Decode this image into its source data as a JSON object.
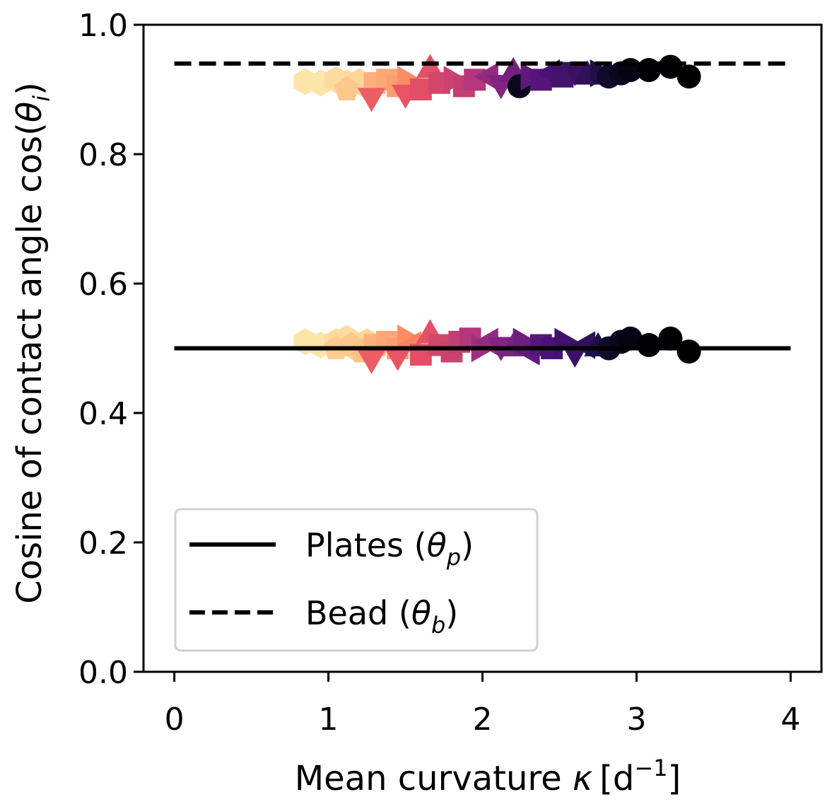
{
  "chart_data": {
    "type": "scatter",
    "title": "",
    "xlabel": {
      "text": "Mean curvature ",
      "symbol": "κ",
      "unit": "[d",
      "unit_exp": "−1",
      "unit_close": "]"
    },
    "ylabel": {
      "text": "Cosine of contact angle cos(",
      "symbol": "θ",
      "sub": "i",
      "close": ")"
    },
    "xlim": [
      -0.2,
      4.2
    ],
    "ylim": [
      0.0,
      1.0
    ],
    "xticks": [
      0,
      1,
      2,
      3,
      4
    ],
    "xtick_labels": [
      "0",
      "1",
      "2",
      "3",
      "4"
    ],
    "yticks": [
      0.0,
      0.2,
      0.4,
      0.6,
      0.8,
      1.0
    ],
    "ytick_labels": [
      "0.0",
      "0.2",
      "0.4",
      "0.6",
      "0.8",
      "1.0"
    ],
    "grid": false,
    "legend_position": "lower-left",
    "reference_lines": [
      {
        "name": "Plates",
        "y": 0.5,
        "x_range": [
          0,
          4
        ],
        "style": "solid",
        "color": "#000000"
      },
      {
        "name": "Bead",
        "y": 0.94,
        "x_range": [
          0,
          4
        ],
        "style": "dashed",
        "color": "#000000"
      }
    ],
    "legend": [
      {
        "label": "Plates (",
        "symbol": "θ",
        "sub": "p",
        "close": ")",
        "style": "solid"
      },
      {
        "label": "Bead (",
        "symbol": "θ",
        "sub": "b",
        "close": ")",
        "style": "dashed"
      }
    ],
    "colormap": "magma",
    "series": [
      {
        "name": "plate-contact-angle",
        "points": [
          {
            "x": 0.85,
            "y": 0.51,
            "m": "hexagon",
            "c": 0.95
          },
          {
            "x": 0.95,
            "y": 0.505,
            "m": "hexagon",
            "c": 0.95
          },
          {
            "x": 1.05,
            "y": 0.51,
            "m": "hexagon",
            "c": 0.93
          },
          {
            "x": 1.12,
            "y": 0.515,
            "m": "hexagon",
            "c": 0.93
          },
          {
            "x": 1.18,
            "y": 0.5,
            "m": "hexagon",
            "c": 0.92
          },
          {
            "x": 1.25,
            "y": 0.51,
            "m": "hexagon",
            "c": 0.92
          },
          {
            "x": 1.05,
            "y": 0.5,
            "m": "pentagon",
            "c": 0.9
          },
          {
            "x": 1.15,
            "y": 0.505,
            "m": "pentagon",
            "c": 0.89
          },
          {
            "x": 1.22,
            "y": 0.495,
            "m": "pentagon",
            "c": 0.88
          },
          {
            "x": 1.3,
            "y": 0.505,
            "m": "square",
            "c": 0.84
          },
          {
            "x": 1.38,
            "y": 0.51,
            "m": "square",
            "c": 0.82
          },
          {
            "x": 1.45,
            "y": 0.5,
            "m": "square",
            "c": 0.8
          },
          {
            "x": 1.5,
            "y": 0.515,
            "m": "triangle-right",
            "c": 0.76
          },
          {
            "x": 1.55,
            "y": 0.505,
            "m": "triangle-left",
            "c": 0.74
          },
          {
            "x": 1.28,
            "y": 0.485,
            "m": "triangle-down",
            "c": 0.66
          },
          {
            "x": 1.45,
            "y": 0.49,
            "m": "triangle-down",
            "c": 0.64
          },
          {
            "x": 1.6,
            "y": 0.49,
            "m": "square",
            "c": 0.62
          },
          {
            "x": 1.66,
            "y": 0.52,
            "m": "triangle-up",
            "c": 0.63
          },
          {
            "x": 1.72,
            "y": 0.505,
            "m": "square",
            "c": 0.58
          },
          {
            "x": 1.8,
            "y": 0.495,
            "m": "square",
            "c": 0.56
          },
          {
            "x": 1.85,
            "y": 0.51,
            "m": "square",
            "c": 0.54
          },
          {
            "x": 1.92,
            "y": 0.515,
            "m": "square",
            "c": 0.5
          },
          {
            "x": 1.98,
            "y": 0.5,
            "m": "triangle-right",
            "c": 0.45
          },
          {
            "x": 2.05,
            "y": 0.51,
            "m": "triangle-left",
            "c": 0.42
          },
          {
            "x": 2.12,
            "y": 0.505,
            "m": "triangle-down",
            "c": 0.38
          },
          {
            "x": 2.2,
            "y": 0.5,
            "m": "triangle-up",
            "c": 0.35
          },
          {
            "x": 2.25,
            "y": 0.51,
            "m": "triangle-right",
            "c": 0.33
          },
          {
            "x": 2.32,
            "y": 0.495,
            "m": "triangle-left",
            "c": 0.3
          },
          {
            "x": 2.38,
            "y": 0.505,
            "m": "square",
            "c": 0.27
          },
          {
            "x": 2.45,
            "y": 0.5,
            "m": "square",
            "c": 0.24
          },
          {
            "x": 2.52,
            "y": 0.51,
            "m": "triangle-right",
            "c": 0.22
          },
          {
            "x": 2.6,
            "y": 0.495,
            "m": "triangle-down",
            "c": 0.2
          },
          {
            "x": 2.68,
            "y": 0.505,
            "m": "triangle-left",
            "c": 0.18
          },
          {
            "x": 2.75,
            "y": 0.5,
            "m": "triangle-up",
            "c": 0.14
          },
          {
            "x": 2.82,
            "y": 0.5,
            "m": "circle",
            "c": 0.08
          },
          {
            "x": 2.9,
            "y": 0.51,
            "m": "circle",
            "c": 0.05
          },
          {
            "x": 2.96,
            "y": 0.515,
            "m": "circle",
            "c": 0.03
          },
          {
            "x": 3.08,
            "y": 0.505,
            "m": "circle",
            "c": 0.0
          },
          {
            "x": 3.22,
            "y": 0.515,
            "m": "circle",
            "c": 0.0
          },
          {
            "x": 3.34,
            "y": 0.495,
            "m": "circle",
            "c": 0.0
          }
        ]
      },
      {
        "name": "bead-contact-angle",
        "points": [
          {
            "x": 0.85,
            "y": 0.912,
            "m": "hexagon",
            "c": 0.95
          },
          {
            "x": 0.95,
            "y": 0.91,
            "m": "hexagon",
            "c": 0.95
          },
          {
            "x": 1.05,
            "y": 0.915,
            "m": "hexagon",
            "c": 0.93
          },
          {
            "x": 1.12,
            "y": 0.91,
            "m": "hexagon",
            "c": 0.93
          },
          {
            "x": 1.2,
            "y": 0.912,
            "m": "hexagon",
            "c": 0.92
          },
          {
            "x": 1.25,
            "y": 0.905,
            "m": "hexagon",
            "c": 0.92
          },
          {
            "x": 1.12,
            "y": 0.9,
            "m": "pentagon",
            "c": 0.89
          },
          {
            "x": 1.3,
            "y": 0.91,
            "m": "square",
            "c": 0.84
          },
          {
            "x": 1.38,
            "y": 0.915,
            "m": "square",
            "c": 0.82
          },
          {
            "x": 1.45,
            "y": 0.905,
            "m": "square",
            "c": 0.8
          },
          {
            "x": 1.5,
            "y": 0.915,
            "m": "triangle-right",
            "c": 0.76
          },
          {
            "x": 1.28,
            "y": 0.89,
            "m": "triangle-down",
            "c": 0.66
          },
          {
            "x": 1.5,
            "y": 0.895,
            "m": "triangle-down",
            "c": 0.64
          },
          {
            "x": 1.6,
            "y": 0.9,
            "m": "square",
            "c": 0.62
          },
          {
            "x": 1.66,
            "y": 0.93,
            "m": "triangle-up",
            "c": 0.63
          },
          {
            "x": 1.72,
            "y": 0.91,
            "m": "square",
            "c": 0.58
          },
          {
            "x": 1.8,
            "y": 0.915,
            "m": "triangle-right",
            "c": 0.56
          },
          {
            "x": 1.88,
            "y": 0.905,
            "m": "square",
            "c": 0.54
          },
          {
            "x": 1.95,
            "y": 0.915,
            "m": "square",
            "c": 0.5
          },
          {
            "x": 2.05,
            "y": 0.92,
            "m": "triangle-left",
            "c": 0.42
          },
          {
            "x": 2.12,
            "y": 0.91,
            "m": "triangle-down",
            "c": 0.38
          },
          {
            "x": 2.2,
            "y": 0.925,
            "m": "triangle-up",
            "c": 0.35
          },
          {
            "x": 2.24,
            "y": 0.905,
            "m": "circle",
            "c": 0.05
          },
          {
            "x": 2.3,
            "y": 0.92,
            "m": "triangle-right",
            "c": 0.3
          },
          {
            "x": 2.38,
            "y": 0.915,
            "m": "square",
            "c": 0.27
          },
          {
            "x": 2.45,
            "y": 0.925,
            "m": "triangle-left",
            "c": 0.24
          },
          {
            "x": 2.52,
            "y": 0.92,
            "m": "square",
            "c": 0.22
          },
          {
            "x": 2.6,
            "y": 0.93,
            "m": "triangle-down",
            "c": 0.2
          },
          {
            "x": 2.68,
            "y": 0.92,
            "m": "triangle-up",
            "c": 0.18
          },
          {
            "x": 2.75,
            "y": 0.925,
            "m": "triangle-right",
            "c": 0.14
          },
          {
            "x": 2.82,
            "y": 0.92,
            "m": "circle",
            "c": 0.08
          },
          {
            "x": 2.9,
            "y": 0.925,
            "m": "circle",
            "c": 0.05
          },
          {
            "x": 2.96,
            "y": 0.93,
            "m": "circle",
            "c": 0.03
          },
          {
            "x": 3.08,
            "y": 0.93,
            "m": "circle",
            "c": 0.0
          },
          {
            "x": 3.22,
            "y": 0.935,
            "m": "circle",
            "c": 0.0
          },
          {
            "x": 3.34,
            "y": 0.92,
            "m": "circle",
            "c": 0.0
          }
        ]
      }
    ]
  }
}
